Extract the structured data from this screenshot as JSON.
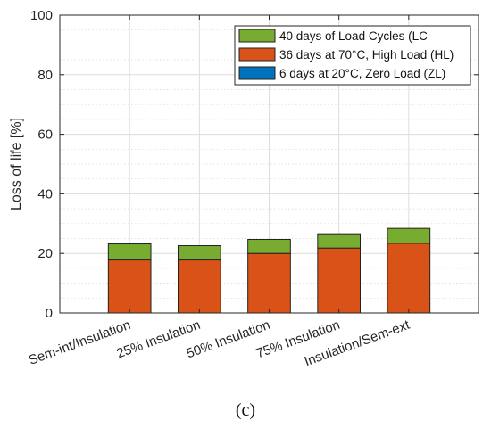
{
  "chart_data": {
    "type": "bar",
    "stacked": true,
    "categories": [
      "Sem-int/Insulation",
      "25% Insulation",
      "50% Insulation",
      "75% Insulation",
      "Insulation/Sem-ext"
    ],
    "series": [
      {
        "name": "6 days at 20°C, Zero Load (ZL)",
        "values": [
          0,
          0,
          0,
          0,
          0
        ],
        "color": "#0072BD"
      },
      {
        "name": "36 days at 70°C, High Load (HL)",
        "values": [
          17.8,
          17.8,
          20.0,
          21.8,
          23.4
        ],
        "color": "#D95319"
      },
      {
        "name": "40 days of Load Cycles (LC",
        "values": [
          5.4,
          4.8,
          4.7,
          4.8,
          5.0
        ],
        "color": "#77AC30"
      }
    ],
    "legend_order": [
      2,
      1,
      0
    ],
    "ylabel": "Loss of life [%]",
    "xlabel": "",
    "ylim": [
      0,
      100
    ],
    "yticks": [
      0,
      20,
      40,
      60,
      80,
      100
    ],
    "grid": true,
    "minor_grid": true,
    "legend_position": "top-right"
  },
  "caption": "(c)"
}
